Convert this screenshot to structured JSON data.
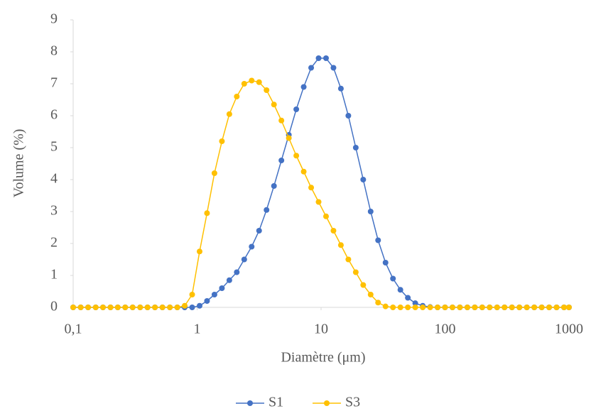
{
  "chart_data": {
    "type": "line",
    "xscale": "log",
    "xlabel": "Diamètre (μm)",
    "ylabel": "Volume (%)",
    "x": [
      0.1,
      0.115,
      0.132,
      0.152,
      0.174,
      0.2,
      0.229,
      0.263,
      0.302,
      0.347,
      0.398,
      0.457,
      0.525,
      0.603,
      0.692,
      0.794,
      0.912,
      1.047,
      1.202,
      1.38,
      1.585,
      1.82,
      2.089,
      2.399,
      2.754,
      3.162,
      3.631,
      4.169,
      4.786,
      5.495,
      6.31,
      7.244,
      8.318,
      9.55,
      10.965,
      12.589,
      14.454,
      16.596,
      19.055,
      21.878,
      25.119,
      28.84,
      33.113,
      38.019,
      43.652,
      50.119,
      57.544,
      66.069,
      75.858,
      87.096,
      100,
      114.8,
      131.8,
      151.4,
      173.8,
      199.5,
      229.1,
      263,
      302,
      346.7,
      398.1,
      457.1,
      524.8,
      602.6,
      691.8,
      794.3,
      912,
      1000
    ],
    "series": [
      {
        "name": "S1",
        "color": "#4472c4",
        "values": [
          0,
          0,
          0,
          0,
          0,
          0,
          0,
          0,
          0,
          0,
          0,
          0,
          0,
          0,
          0,
          0,
          0,
          0.05,
          0.2,
          0.4,
          0.6,
          0.85,
          1.1,
          1.5,
          1.9,
          2.4,
          3.05,
          3.8,
          4.6,
          5.4,
          6.2,
          6.9,
          7.5,
          7.8,
          7.8,
          7.5,
          6.85,
          6.0,
          5.0,
          4.0,
          3.0,
          2.1,
          1.4,
          0.9,
          0.55,
          0.3,
          0.13,
          0.05,
          0.01,
          0,
          0,
          0,
          0,
          0,
          0,
          0,
          0,
          0,
          0,
          0,
          0,
          0,
          0,
          0,
          0,
          0,
          0,
          0
        ]
      },
      {
        "name": "S3",
        "color": "#ffc000",
        "values": [
          0,
          0,
          0,
          0,
          0,
          0,
          0,
          0,
          0,
          0,
          0,
          0,
          0,
          0,
          0,
          0.05,
          0.4,
          1.75,
          2.95,
          4.2,
          5.2,
          6.05,
          6.6,
          7.0,
          7.1,
          7.05,
          6.8,
          6.35,
          5.85,
          5.3,
          4.75,
          4.25,
          3.75,
          3.3,
          2.85,
          2.4,
          1.95,
          1.5,
          1.1,
          0.7,
          0.4,
          0.15,
          0.03,
          0,
          0,
          0,
          0,
          0,
          0,
          0,
          0,
          0,
          0,
          0,
          0,
          0,
          0,
          0,
          0,
          0,
          0,
          0,
          0,
          0,
          0,
          0,
          0,
          0
        ]
      }
    ],
    "xlim": [
      0.1,
      1000
    ],
    "xticks": [
      {
        "value": 0.1,
        "label": "0,1"
      },
      1,
      10,
      100,
      1000
    ],
    "ylim": [
      0,
      9
    ],
    "yticks": [
      0,
      1,
      2,
      3,
      4,
      5,
      6,
      7,
      8,
      9
    ],
    "grid": false,
    "legend": "bottom"
  }
}
